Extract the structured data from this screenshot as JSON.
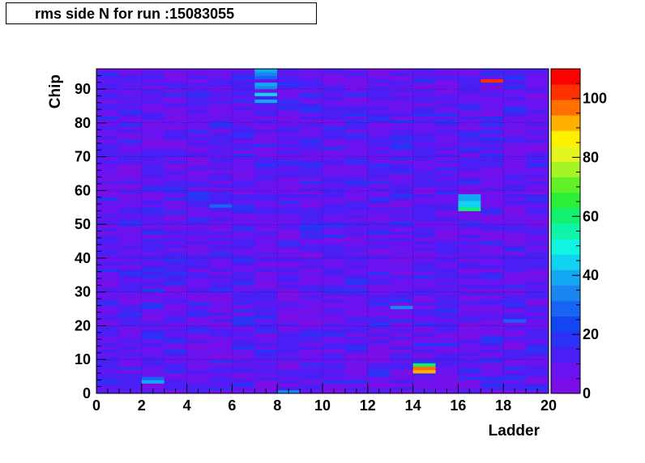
{
  "title": "rms side N for run :15083055",
  "chart_data": {
    "type": "heatmap",
    "title": "rms side N for run :15083055",
    "xlabel": "Ladder",
    "ylabel": "Chip",
    "xlim": [
      0,
      20
    ],
    "ylim": [
      0,
      96
    ],
    "x_ticks": [
      0,
      2,
      4,
      6,
      8,
      10,
      12,
      14,
      16,
      18,
      20
    ],
    "y_ticks": [
      0,
      10,
      20,
      30,
      40,
      50,
      60,
      70,
      80,
      90
    ],
    "z_ticks": [
      0,
      20,
      40,
      60,
      80,
      100
    ],
    "zlim": [
      0,
      110
    ],
    "grid": true,
    "baseline_value": 5,
    "notable_cells": [
      {
        "ladder": 14,
        "chip": 6,
        "value": 90
      },
      {
        "ladder": 14,
        "chip": 7,
        "value": 98
      },
      {
        "ladder": 14,
        "chip": 8,
        "value": 60
      },
      {
        "ladder": 16,
        "chip": 54,
        "value": 60
      },
      {
        "ladder": 16,
        "chip": 55,
        "value": 45
      },
      {
        "ladder": 16,
        "chip": 56,
        "value": 42
      },
      {
        "ladder": 16,
        "chip": 57,
        "value": 40
      },
      {
        "ladder": 16,
        "chip": 58,
        "value": 38
      },
      {
        "ladder": 17,
        "chip": 92,
        "value": 102
      },
      {
        "ladder": 7,
        "chip": 95,
        "value": 38
      },
      {
        "ladder": 7,
        "chip": 94,
        "value": 36
      },
      {
        "ladder": 7,
        "chip": 93,
        "value": 30
      },
      {
        "ladder": 7,
        "chip": 91,
        "value": 38
      },
      {
        "ladder": 7,
        "chip": 90,
        "value": 36
      },
      {
        "ladder": 7,
        "chip": 88,
        "value": 42
      },
      {
        "ladder": 7,
        "chip": 86,
        "value": 40
      },
      {
        "ladder": 8,
        "chip": 0,
        "value": 32
      },
      {
        "ladder": 2,
        "chip": 3,
        "value": 38
      },
      {
        "ladder": 2,
        "chip": 4,
        "value": 30
      },
      {
        "ladder": 13,
        "chip": 25,
        "value": 35
      },
      {
        "ladder": 5,
        "chip": 55,
        "value": 28
      },
      {
        "ladder": 2,
        "chip": 30,
        "value": 25
      },
      {
        "ladder": 18,
        "chip": 21,
        "value": 30
      }
    ]
  }
}
